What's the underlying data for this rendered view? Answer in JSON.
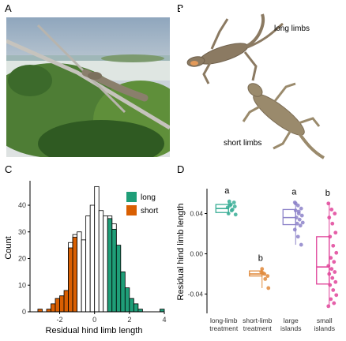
{
  "panels": {
    "A": "A",
    "B": "B",
    "C": "C",
    "D": "D"
  },
  "photo_b_labels": {
    "long": "long limbs",
    "short": "short limbs"
  },
  "colors": {
    "long": "#1f9e78",
    "short": "#d95f02",
    "mid": "#ffffff",
    "treatment_long": "#3aae96",
    "treatment_short": "#e08a3c",
    "large_islands": "#8d83c9",
    "small_islands": "#e0449a"
  },
  "chart_data": [
    {
      "type": "bar",
      "panel": "C",
      "xlabel": "Residual hind limb length",
      "ylabel": "Count",
      "xlim": [
        -3.7,
        4.0
      ],
      "ylim": [
        0,
        48
      ],
      "xticks": [
        -2,
        0,
        2,
        4
      ],
      "yticks": [
        0,
        10,
        20,
        30,
        40
      ],
      "bin_width": 0.25,
      "legend": {
        "position": "top-right",
        "entries": [
          "long",
          "short"
        ]
      },
      "bins": [
        {
          "x0": -3.25,
          "count": 1,
          "group": "short"
        },
        {
          "x0": -2.75,
          "count": 1,
          "group": "short"
        },
        {
          "x0": -2.5,
          "count": 3,
          "group": "short"
        },
        {
          "x0": -2.25,
          "count": 5,
          "group": "short"
        },
        {
          "x0": -2.0,
          "count": 6,
          "group": "short"
        },
        {
          "x0": -1.75,
          "count": 8,
          "group": "short"
        },
        {
          "x0": -1.5,
          "count": 24,
          "group": "short"
        },
        {
          "x0": -1.25,
          "count": 28,
          "group": "short"
        },
        {
          "x0": -1.0,
          "count": 30,
          "group": "mid"
        },
        {
          "x0": -0.75,
          "count": 27,
          "group": "mid"
        },
        {
          "x0": -0.5,
          "count": 36,
          "group": "mid"
        },
        {
          "x0": -0.25,
          "count": 40,
          "group": "mid"
        },
        {
          "x0": 0.0,
          "count": 47,
          "group": "mid"
        },
        {
          "x0": 0.25,
          "count": 38,
          "group": "mid"
        },
        {
          "x0": 0.5,
          "count": 36,
          "group": "mid"
        },
        {
          "x0": 0.75,
          "count": 35,
          "group": "long"
        },
        {
          "x0": 1.0,
          "count": 31,
          "group": "long"
        },
        {
          "x0": 1.25,
          "count": 25,
          "group": "long"
        },
        {
          "x0": 1.5,
          "count": 15,
          "group": "long"
        },
        {
          "x0": 1.75,
          "count": 9,
          "group": "long"
        },
        {
          "x0": 2.0,
          "count": 5,
          "group": "long"
        },
        {
          "x0": 2.25,
          "count": 3,
          "group": "long"
        },
        {
          "x0": 2.5,
          "count": 1,
          "group": "long"
        },
        {
          "x0": 3.75,
          "count": 1,
          "group": "long"
        }
      ],
      "outline_bins": [
        {
          "x0": -1.5,
          "count": 26
        },
        {
          "x0": -1.25,
          "count": 29
        },
        {
          "x0": 0.75,
          "count": 36
        },
        {
          "x0": 1.0,
          "count": 33
        }
      ]
    },
    {
      "type": "scatter",
      "panel": "D",
      "ylabel": "Residual hind limb length",
      "ylim": [
        -0.056,
        0.06
      ],
      "yticks": [
        -0.04,
        0.0,
        0.04
      ],
      "ytick_labels": [
        "-0.04",
        "0.00",
        "0.04"
      ],
      "groups": [
        {
          "label": "long-limb treatment",
          "letter": "a",
          "color": "#3aae96",
          "mean": 0.045,
          "lower": 0.041,
          "upper": 0.049,
          "points": [
            0.046,
            0.049,
            0.051,
            0.04,
            0.043,
            0.047,
            0.052,
            0.044,
            0.039,
            0.048
          ]
        },
        {
          "label": "short-limb treatment",
          "letter": "b",
          "color": "#e08a3c",
          "mean": -0.02,
          "lower": -0.022,
          "upper": -0.017,
          "points": [
            -0.018,
            -0.02,
            -0.022,
            -0.015,
            -0.025,
            -0.034,
            -0.019
          ]
        },
        {
          "label": "large islands",
          "letter": "a",
          "color": "#8d83c9",
          "mean": 0.036,
          "lower": 0.029,
          "upper": 0.044,
          "points": [
            0.051,
            0.048,
            0.045,
            0.043,
            0.04,
            0.038,
            0.036,
            0.034,
            0.031,
            0.03,
            0.028,
            0.024,
            0.017,
            0.009,
            0.05,
            0.042
          ]
        },
        {
          "label": "small islands",
          "letter": "b",
          "color": "#e0449a",
          "mean": -0.013,
          "lower": -0.03,
          "upper": 0.017,
          "points": [
            0.05,
            0.044,
            0.04,
            0.036,
            0.03,
            0.021,
            0.017,
            0.008,
            0.001,
            -0.004,
            -0.008,
            -0.012,
            -0.015,
            -0.018,
            -0.02,
            -0.024,
            -0.028,
            -0.031,
            -0.036,
            -0.041,
            -0.045,
            -0.049,
            -0.052
          ]
        }
      ]
    }
  ]
}
